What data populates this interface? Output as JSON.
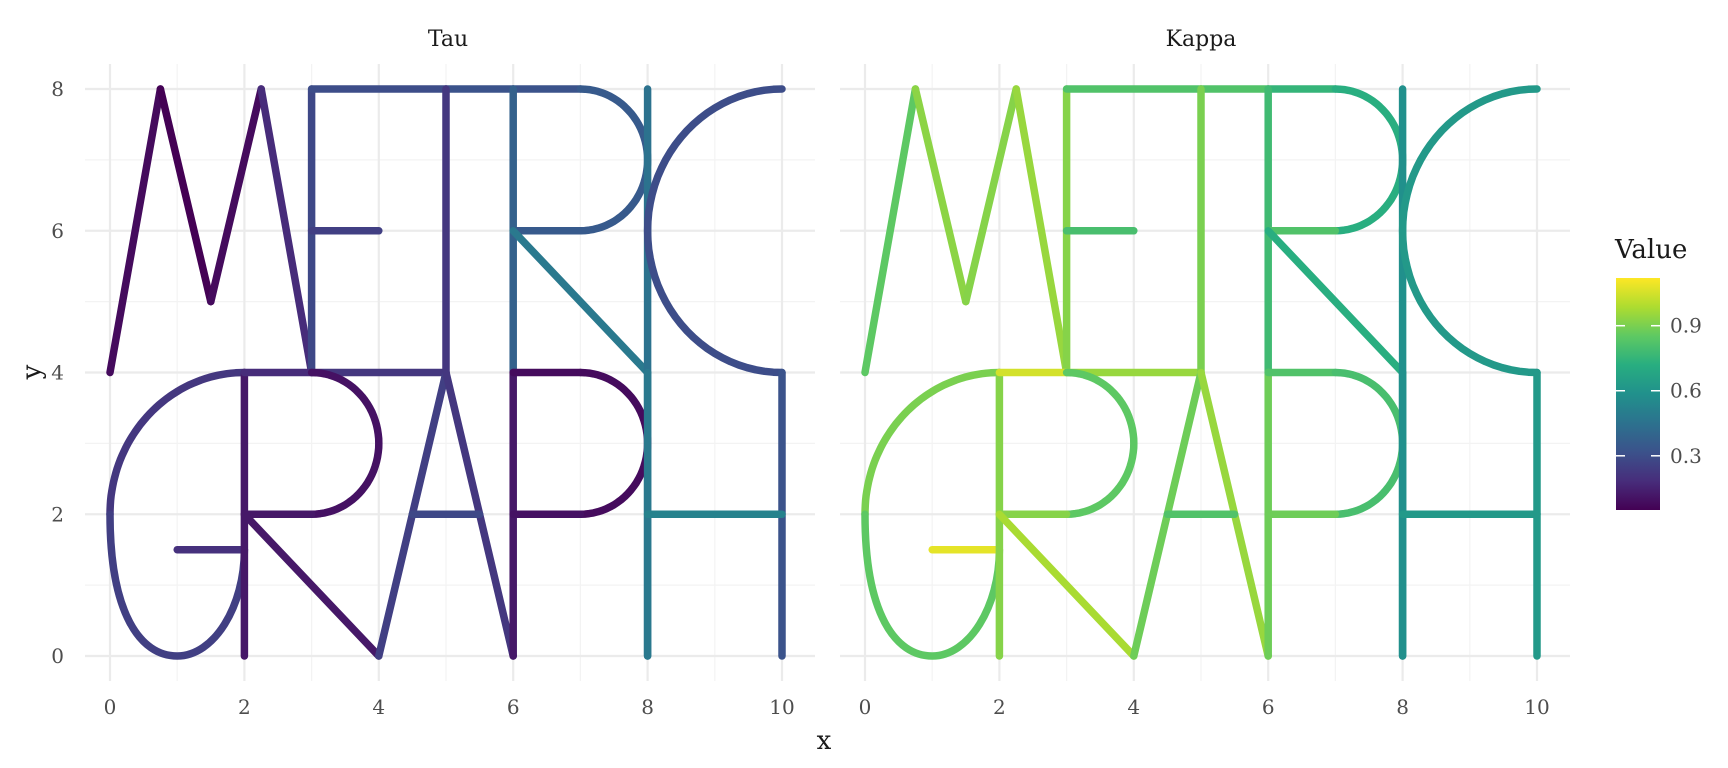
{
  "chart_data": {
    "type": "line",
    "facets": [
      "Tau",
      "Kappa"
    ],
    "xlabel": "x",
    "ylabel": "y",
    "xlim": [
      0,
      10
    ],
    "ylim": [
      0,
      8
    ],
    "x_ticks": [
      0,
      2,
      4,
      6,
      8,
      10
    ],
    "y_ticks": [
      0,
      2,
      4,
      6,
      8
    ],
    "grid": true,
    "legend": {
      "title": "Value",
      "position": "right",
      "colormap": "viridis",
      "range": [
        0.05,
        1.12
      ],
      "ticks": [
        0.3,
        0.6,
        0.9
      ]
    },
    "edges": [
      {
        "name": "M1",
        "points": [
          [
            0,
            4
          ],
          [
            0.75,
            8
          ]
        ],
        "tau": 0.08,
        "kappa": 0.85
      },
      {
        "name": "M2",
        "points": [
          [
            0.75,
            8
          ],
          [
            1.5,
            5
          ]
        ],
        "tau": 0.05,
        "kappa": 0.93
      },
      {
        "name": "M3",
        "points": [
          [
            1.5,
            5
          ],
          [
            2.25,
            8
          ]
        ],
        "tau": 0.08,
        "kappa": 0.92
      },
      {
        "name": "M4",
        "points": [
          [
            2.25,
            8
          ],
          [
            3,
            4
          ]
        ],
        "tau": 0.18,
        "kappa": 0.95
      },
      {
        "name": "E_vertical",
        "points": [
          [
            3,
            8
          ],
          [
            3,
            4
          ]
        ],
        "tau": 0.28,
        "kappa": 0.92
      },
      {
        "name": "E_top",
        "points": [
          [
            3,
            8
          ],
          [
            5,
            8
          ]
        ],
        "tau": 0.3,
        "kappa": 0.82
      },
      {
        "name": "E_middle",
        "points": [
          [
            3,
            6
          ],
          [
            4,
            6
          ]
        ],
        "tau": 0.25,
        "kappa": 0.8
      },
      {
        "name": "E_bottom",
        "points": [
          [
            3,
            4
          ],
          [
            5,
            4
          ]
        ],
        "tau": 0.22,
        "kappa": 0.95
      },
      {
        "name": "T_top",
        "points": [
          [
            5,
            8
          ],
          [
            6,
            8
          ]
        ],
        "tau": 0.32,
        "kappa": 0.82
      },
      {
        "name": "T_vertical",
        "points": [
          [
            5,
            8
          ],
          [
            5,
            4
          ]
        ],
        "tau": 0.22,
        "kappa": 0.9
      },
      {
        "name": "R1_top",
        "points": [
          [
            6,
            8
          ],
          [
            7,
            8
          ]
        ],
        "tau": 0.32,
        "kappa": 0.75
      },
      {
        "name": "R1_vertical",
        "points": [
          [
            6,
            8
          ],
          [
            6,
            4
          ]
        ],
        "tau": 0.38,
        "kappa": 0.78
      },
      {
        "name": "R1_bowl",
        "points": [
          [
            7,
            8
          ],
          [
            8,
            7
          ]
        ],
        "arc": {
          "cx": 7,
          "cy": 7,
          "r": 1,
          "a0": 90,
          "a1": -90
        },
        "tau": 0.35,
        "kappa": 0.72
      },
      {
        "name": "R1_middle",
        "points": [
          [
            6,
            6
          ],
          [
            7,
            6
          ]
        ],
        "tau": 0.35,
        "kappa": 0.82
      },
      {
        "name": "R1_leg",
        "points": [
          [
            6,
            6
          ],
          [
            8,
            4
          ]
        ],
        "tau": 0.48,
        "kappa": 0.72
      },
      {
        "name": "I",
        "points": [
          [
            8,
            8
          ],
          [
            8,
            0
          ]
        ],
        "tau": 0.45,
        "kappa": 0.58
      },
      {
        "name": "C",
        "arc": {
          "cx": 10,
          "cy": 6,
          "r": 2,
          "a0": 90,
          "a1": 270
        },
        "points": [
          [
            10,
            8
          ],
          [
            10,
            4
          ]
        ],
        "tau": 0.3,
        "kappa": 0.62
      },
      {
        "name": "G_bowl",
        "arc": {
          "cx": 2,
          "cy": 2,
          "r": 2,
          "a0": 90,
          "a1": 180
        },
        "points": [
          [
            2,
            4
          ],
          [
            0,
            2
          ]
        ],
        "tau": 0.22,
        "kappa": 0.9
      },
      {
        "name": "G_tail",
        "points": [
          [
            0,
            2
          ],
          [
            1,
            0
          ],
          [
            2,
            1.5
          ]
        ],
        "tau": 0.25,
        "kappa": 0.85
      },
      {
        "name": "G_bar",
        "points": [
          [
            1,
            1.5
          ],
          [
            2,
            1.5
          ]
        ],
        "tau": 0.2,
        "kappa": 1.08
      },
      {
        "name": "R2_vertical",
        "points": [
          [
            2,
            4
          ],
          [
            2,
            0
          ]
        ],
        "tau": 0.12,
        "kappa": 0.92
      },
      {
        "name": "R2_top",
        "points": [
          [
            2,
            4
          ],
          [
            3,
            4
          ]
        ],
        "tau": 0.18,
        "kappa": 1.05
      },
      {
        "name": "R2_bowl",
        "arc": {
          "cx": 3,
          "cy": 3,
          "r": 1,
          "a0": 90,
          "a1": -90
        },
        "points": [
          [
            3,
            4
          ],
          [
            3,
            2
          ]
        ],
        "tau": 0.1,
        "kappa": 0.85
      },
      {
        "name": "R2_middle",
        "points": [
          [
            2,
            2
          ],
          [
            3,
            2
          ]
        ],
        "tau": 0.12,
        "kappa": 0.92
      },
      {
        "name": "R2_leg",
        "points": [
          [
            2,
            2
          ],
          [
            4,
            0
          ]
        ],
        "tau": 0.12,
        "kappa": 0.98
      },
      {
        "name": "A1",
        "points": [
          [
            4,
            0
          ],
          [
            5,
            4
          ]
        ],
        "tau": 0.25,
        "kappa": 0.88
      },
      {
        "name": "A2",
        "points": [
          [
            5,
            4
          ],
          [
            6,
            0
          ]
        ],
        "tau": 0.22,
        "kappa": 0.95
      },
      {
        "name": "A_bar",
        "points": [
          [
            4.5,
            2
          ],
          [
            5.5,
            2
          ]
        ],
        "tau": 0.28,
        "kappa": 0.82
      },
      {
        "name": "P_vertical",
        "points": [
          [
            6,
            4
          ],
          [
            6,
            0
          ]
        ],
        "tau": 0.12,
        "kappa": 0.88
      },
      {
        "name": "P_top",
        "points": [
          [
            6,
            4
          ],
          [
            7,
            4
          ]
        ],
        "tau": 0.08,
        "kappa": 0.82
      },
      {
        "name": "P_bowl",
        "arc": {
          "cx": 7,
          "cy": 3,
          "r": 1,
          "a0": 90,
          "a1": -90
        },
        "points": [
          [
            7,
            4
          ],
          [
            7,
            2
          ]
        ],
        "tau": 0.08,
        "kappa": 0.8
      },
      {
        "name": "P_middle",
        "points": [
          [
            6,
            2
          ],
          [
            7,
            2
          ]
        ],
        "tau": 0.1,
        "kappa": 0.88
      },
      {
        "name": "H_left",
        "points": [
          [
            8,
            4
          ],
          [
            8,
            0
          ]
        ],
        "tau": 0.48,
        "kappa": 0.58
      },
      {
        "name": "H_right",
        "points": [
          [
            10,
            4
          ],
          [
            10,
            0
          ]
        ],
        "tau": 0.32,
        "kappa": 0.62
      },
      {
        "name": "H_bar",
        "points": [
          [
            8,
            2
          ],
          [
            10,
            2
          ]
        ],
        "tau": 0.52,
        "kappa": 0.62
      }
    ]
  }
}
